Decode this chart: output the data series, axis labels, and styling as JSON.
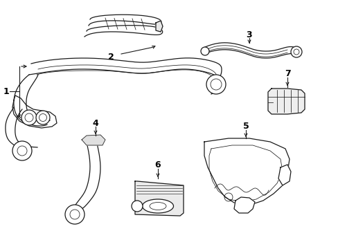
{
  "background_color": "#ffffff",
  "line_color": "#1a1a1a",
  "label_color": "#000000",
  "lw": 0.9,
  "lw_thin": 0.55,
  "figsize": [
    4.89,
    3.6
  ],
  "dpi": 100
}
